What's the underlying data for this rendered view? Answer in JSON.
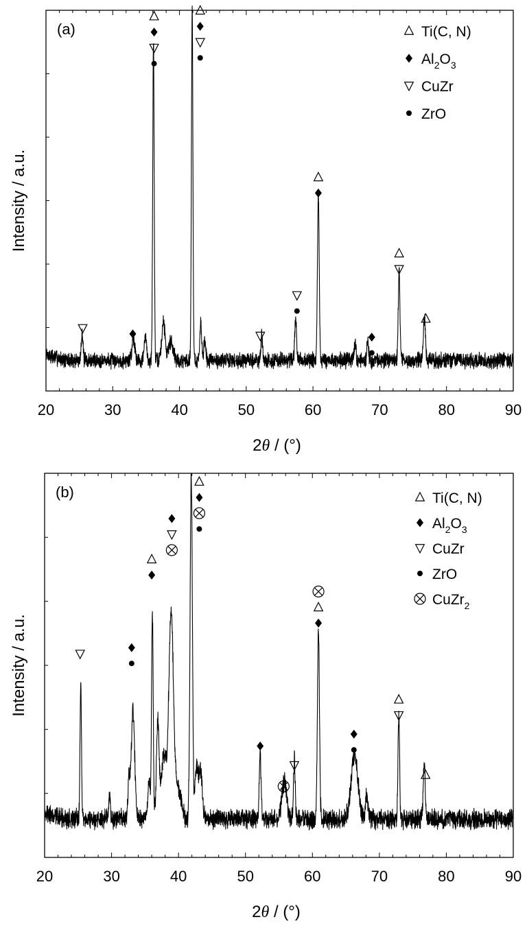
{
  "chart_data": [
    {
      "type": "line",
      "panel_label": "(a)",
      "xlabel_prefix": "2",
      "xlabel_theta": "θ",
      "xlabel_unit": " / (°)",
      "ylabel": "Intensity / a.u.",
      "xlim": [
        20,
        90
      ],
      "ylim": [
        0,
        100
      ],
      "xticks": [
        20,
        30,
        40,
        50,
        60,
        70,
        80,
        90
      ],
      "yticks_shown": false,
      "baseline": 8,
      "noise": 1.6,
      "noise_seed": 7,
      "peaks": [
        {
          "x": 25.4,
          "h": 7.5,
          "w": 0.13
        },
        {
          "x": 33.1,
          "h": 6,
          "w": 0.22
        },
        {
          "x": 34.9,
          "h": 6,
          "w": 0.18
        },
        {
          "x": 36.1,
          "h": 84,
          "w": 0.11
        },
        {
          "x": 37.6,
          "h": 10,
          "w": 0.25
        },
        {
          "x": 38.7,
          "h": 5,
          "w": 0.35
        },
        {
          "x": 41.9,
          "h": 93,
          "w": 0.11
        },
        {
          "x": 43.2,
          "h": 10,
          "w": 0.13
        },
        {
          "x": 43.8,
          "h": 5,
          "w": 0.15
        },
        {
          "x": 52.3,
          "h": 6,
          "w": 0.13
        },
        {
          "x": 57.4,
          "h": 11,
          "w": 0.13
        },
        {
          "x": 60.8,
          "h": 44,
          "w": 0.13
        },
        {
          "x": 66.3,
          "h": 5,
          "w": 0.13
        },
        {
          "x": 68.2,
          "h": 4.5,
          "w": 0.13
        },
        {
          "x": 72.9,
          "h": 23,
          "w": 0.13
        },
        {
          "x": 76.7,
          "h": 11,
          "w": 0.15
        }
      ],
      "annotations": [
        {
          "x": 36.2,
          "y": 86,
          "markers": [
            "tri-up",
            "diamond",
            "tri-down",
            "dot"
          ]
        },
        {
          "x": 43.1,
          "y": 87.5,
          "markers": [
            "tri-up",
            "diamond",
            "tri-down",
            "dot"
          ]
        },
        {
          "x": 25.5,
          "y": 16.5,
          "markers": [
            "tri-down"
          ]
        },
        {
          "x": 33.0,
          "y": 15,
          "markers": [
            "diamond"
          ]
        },
        {
          "x": 52.1,
          "y": 14.5,
          "markers": [
            "tri-down"
          ]
        },
        {
          "x": 57.6,
          "y": 21,
          "markers": [
            "tri-down",
            "dot"
          ]
        },
        {
          "x": 60.8,
          "y": 52,
          "markers": [
            "tri-up",
            "diamond"
          ]
        },
        {
          "x": 68.8,
          "y": 10,
          "markers": [
            "diamond",
            "dot"
          ]
        },
        {
          "x": 72.9,
          "y": 32,
          "markers": [
            "tri-up",
            "tri-down"
          ]
        },
        {
          "x": 76.9,
          "y": 19,
          "markers": [
            "tri-up"
          ]
        }
      ],
      "legend": [
        {
          "marker": "tri-up",
          "text": "Ti(C, N)"
        },
        {
          "marker": "diamond",
          "text": "Al",
          "sub1": "2",
          "mid": "O",
          "sub2": "3"
        },
        {
          "marker": "tri-down",
          "text": "CuZr"
        },
        {
          "marker": "dot",
          "text": "ZrO"
        }
      ]
    },
    {
      "type": "line",
      "panel_label": "(b)",
      "xlabel_prefix": "2",
      "xlabel_theta": "θ",
      "xlabel_unit": " / (°)",
      "ylabel": "Intensity / a.u.",
      "xlim": [
        20,
        90
      ],
      "ylim": [
        0,
        100
      ],
      "xticks": [
        20,
        30,
        40,
        50,
        60,
        70,
        80,
        90
      ],
      "yticks_shown": false,
      "baseline": 10,
      "noise": 2,
      "noise_seed": 19,
      "peaks": [
        {
          "x": 25.4,
          "h": 36,
          "w": 0.11
        },
        {
          "x": 29.7,
          "h": 6,
          "w": 0.12
        },
        {
          "x": 32.6,
          "h": 10,
          "w": 0.15
        },
        {
          "x": 33.2,
          "h": 28,
          "w": 0.25
        },
        {
          "x": 35.6,
          "h": 10,
          "w": 0.2
        },
        {
          "x": 36.1,
          "h": 53,
          "w": 0.12
        },
        {
          "x": 36.9,
          "h": 25,
          "w": 0.2
        },
        {
          "x": 37.8,
          "h": 16,
          "w": 0.35
        },
        {
          "x": 38.9,
          "h": 54,
          "w": 0.35
        },
        {
          "x": 40.0,
          "h": 8,
          "w": 0.45
        },
        {
          "x": 41.9,
          "h": 90,
          "w": 0.17
        },
        {
          "x": 42.7,
          "h": 13,
          "w": 0.25
        },
        {
          "x": 43.3,
          "h": 12,
          "w": 0.25
        },
        {
          "x": 52.2,
          "h": 17,
          "w": 0.14
        },
        {
          "x": 55.8,
          "h": 10,
          "w": 0.35
        },
        {
          "x": 57.3,
          "h": 15,
          "w": 0.13
        },
        {
          "x": 60.9,
          "h": 50,
          "w": 0.15
        },
        {
          "x": 66.3,
          "h": 17,
          "w": 0.5
        },
        {
          "x": 68.1,
          "h": 6,
          "w": 0.2
        },
        {
          "x": 72.9,
          "h": 27,
          "w": 0.12
        },
        {
          "x": 76.7,
          "h": 14,
          "w": 0.15
        }
      ],
      "annotations": [
        {
          "x": 25.3,
          "y": 53,
          "markers": [
            "tri-down"
          ]
        },
        {
          "x": 33.0,
          "y": 50.5,
          "markers": [
            "diamond",
            "dot"
          ]
        },
        {
          "x": 36.0,
          "y": 73.5,
          "markers": [
            "tri-up",
            "diamond"
          ]
        },
        {
          "x": 39.0,
          "y": 80,
          "markers": [
            "diamond",
            "tri-down",
            "otimes"
          ]
        },
        {
          "x": 43.1,
          "y": 85.5,
          "markers": [
            "tri-up",
            "diamond",
            "otimes",
            "dot"
          ]
        },
        {
          "x": 52.2,
          "y": 29,
          "markers": [
            "diamond"
          ]
        },
        {
          "x": 55.7,
          "y": 18.5,
          "markers": [
            "otimes"
          ]
        },
        {
          "x": 57.3,
          "y": 24,
          "markers": [
            "tri-down"
          ]
        },
        {
          "x": 60.9,
          "y": 61,
          "markers": [
            "otimes",
            "tri-up",
            "diamond"
          ]
        },
        {
          "x": 66.2,
          "y": 28,
          "markers": [
            "diamond",
            "dot"
          ]
        },
        {
          "x": 72.9,
          "y": 37,
          "markers": [
            "tri-up",
            "tri-down"
          ]
        },
        {
          "x": 76.9,
          "y": 21.5,
          "markers": [
            "tri-up"
          ]
        }
      ],
      "legend": [
        {
          "marker": "tri-up",
          "text": "Ti(C, N)"
        },
        {
          "marker": "diamond",
          "text": "Al",
          "sub1": "2",
          "mid": "O",
          "sub2": "3"
        },
        {
          "marker": "tri-down",
          "text": "CuZr"
        },
        {
          "marker": "dot",
          "text": "ZrO"
        },
        {
          "marker": "otimes",
          "text": "CuZr",
          "sub1": "2"
        }
      ]
    }
  ]
}
